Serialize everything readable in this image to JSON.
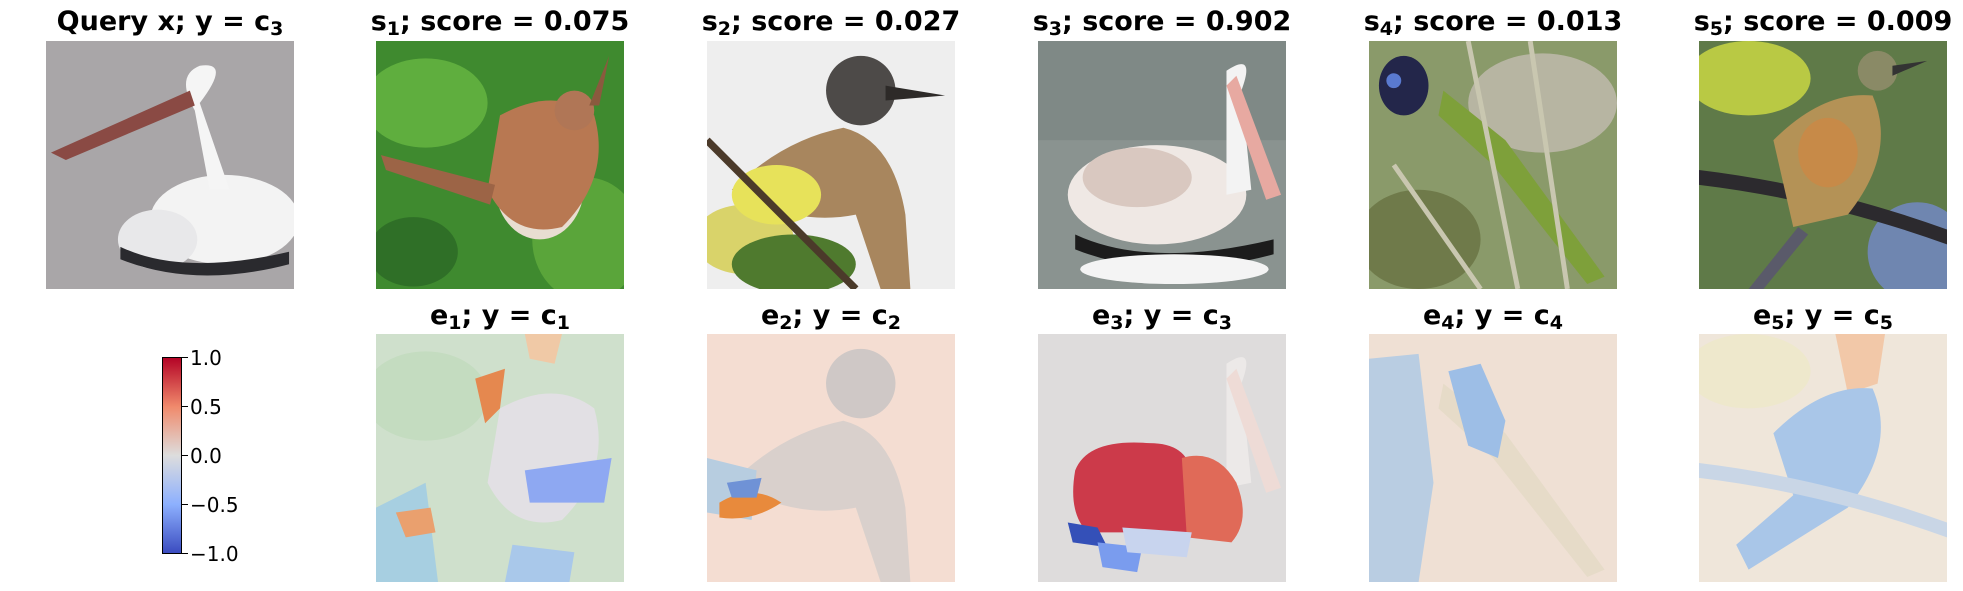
{
  "top_row": [
    {
      "title_main": "Query x; y = c",
      "title_sub": "3",
      "title_tail": "",
      "image": "pelican-icon"
    },
    {
      "title_main": "s",
      "title_sub": "1",
      "title_tail": "; score = 0.075",
      "image": "wren-icon"
    },
    {
      "title_main": "s",
      "title_sub": "2",
      "title_tail": "; score = 0.027",
      "image": "flycatcher-icon"
    },
    {
      "title_main": "s",
      "title_sub": "3",
      "title_tail": "; score = 0.902",
      "image": "pelican-icon"
    },
    {
      "title_main": "s",
      "title_sub": "4",
      "title_tail": "; score = 0.013",
      "image": "jay-icon"
    },
    {
      "title_main": "s",
      "title_sub": "5",
      "title_tail": "; score = 0.009",
      "image": "oriole-icon"
    }
  ],
  "bottom_row": [
    {
      "title_main": "e",
      "title_sub": "1",
      "title_mid": "; y = c",
      "title_sub2": "1"
    },
    {
      "title_main": "e",
      "title_sub": "2",
      "title_mid": "; y = c",
      "title_sub2": "2"
    },
    {
      "title_main": "e",
      "title_sub": "3",
      "title_mid": "; y = c",
      "title_sub2": "3"
    },
    {
      "title_main": "e",
      "title_sub": "4",
      "title_mid": "; y = c",
      "title_sub2": "4"
    },
    {
      "title_main": "e",
      "title_sub": "5",
      "title_mid": "; y = c",
      "title_sub2": "5"
    }
  ],
  "colorbar": {
    "ticks": [
      "1.0",
      "0.5",
      "0.0",
      "−0.5",
      "−1.0"
    ],
    "colormap": "coolwarm",
    "colors": {
      "max": "#b40426",
      "mid": "#dddddd",
      "min": "#3b4cc0"
    }
  }
}
